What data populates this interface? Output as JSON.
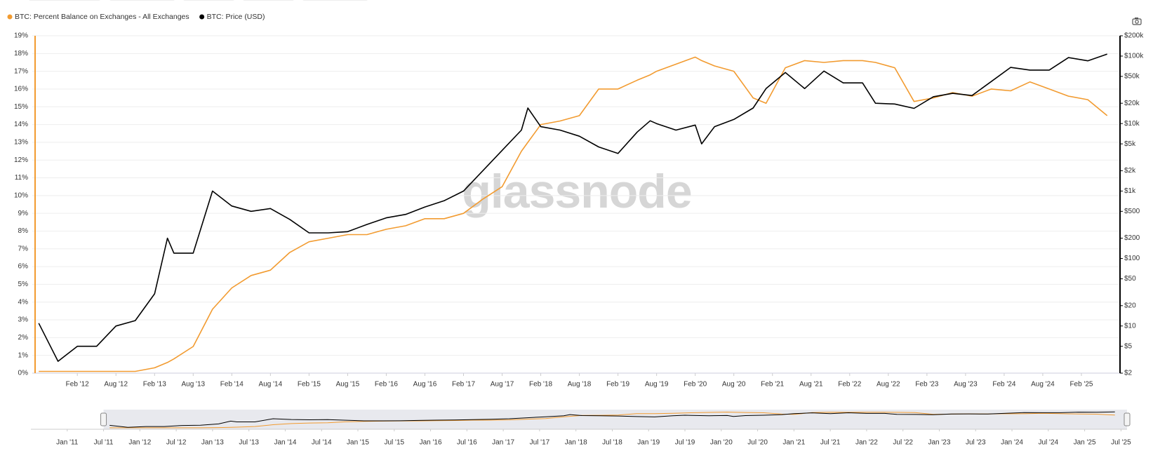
{
  "chart_data": {
    "type": "line",
    "watermark": "glassnode",
    "x": [
      "2011-08",
      "2011-11",
      "2012-02",
      "2012-05",
      "2012-08",
      "2012-11",
      "2013-02",
      "2013-04",
      "2013-05",
      "2013-08",
      "2013-11",
      "2014-02",
      "2014-05",
      "2014-08",
      "2014-11",
      "2015-02",
      "2015-05",
      "2015-08",
      "2015-11",
      "2016-02",
      "2016-05",
      "2016-08",
      "2016-11",
      "2017-02",
      "2017-05",
      "2017-08",
      "2017-11",
      "2017-12",
      "2018-02",
      "2018-05",
      "2018-08",
      "2018-11",
      "2019-02",
      "2019-05",
      "2019-07",
      "2019-08",
      "2019-11",
      "2020-02",
      "2020-03",
      "2020-05",
      "2020-08",
      "2020-11",
      "2021-01",
      "2021-04",
      "2021-07",
      "2021-10",
      "2022-01",
      "2022-04",
      "2022-06",
      "2022-09",
      "2022-12",
      "2023-03",
      "2023-06",
      "2023-09",
      "2023-12",
      "2024-03",
      "2024-06",
      "2024-09",
      "2024-12",
      "2025-03",
      "2025-06"
    ],
    "series": [
      {
        "name": "BTC: Percent Balance on Exchanges - All Exchanges",
        "color": "#f29b30",
        "axis": "y",
        "values": [
          0.1,
          0.1,
          0.1,
          0.1,
          0.1,
          0.1,
          0.3,
          0.6,
          0.8,
          1.5,
          3.6,
          4.8,
          5.5,
          5.8,
          6.8,
          7.4,
          7.6,
          7.8,
          7.8,
          8.1,
          8.3,
          8.7,
          8.7,
          9.0,
          9.8,
          10.5,
          12.5,
          13.0,
          14.0,
          14.2,
          14.5,
          16.0,
          16.0,
          16.5,
          16.8,
          17.0,
          17.4,
          17.8,
          17.6,
          17.3,
          17.0,
          15.5,
          15.2,
          17.2,
          17.6,
          17.5,
          17.6,
          17.6,
          17.5,
          17.2,
          15.3,
          15.5,
          15.8,
          15.6,
          16.0,
          15.9,
          16.4,
          16.0,
          15.6,
          15.4,
          14.5
        ]
      },
      {
        "name": "BTC: Price (USD)",
        "color": "#000000",
        "axis": "y2",
        "values": [
          11,
          3,
          5,
          5,
          10,
          12,
          30,
          200,
          120,
          120,
          1000,
          600,
          500,
          550,
          380,
          240,
          240,
          250,
          320,
          400,
          450,
          580,
          720,
          1000,
          2000,
          4000,
          8000,
          17000,
          9000,
          8000,
          6500,
          4500,
          3600,
          7500,
          11000,
          10000,
          8000,
          9500,
          5000,
          9000,
          11500,
          17000,
          33000,
          57000,
          33000,
          60000,
          40000,
          40000,
          20000,
          19500,
          16800,
          25000,
          28000,
          26000,
          42000,
          68000,
          62000,
          62000,
          95000,
          85000,
          107000
        ]
      }
    ],
    "xlim": [
      "2011-07",
      "2025-08"
    ],
    "xticks": [
      {
        "value": "2012-02",
        "label": "Feb '12"
      },
      {
        "value": "2012-08",
        "label": "Aug '12"
      },
      {
        "value": "2013-02",
        "label": "Feb '13"
      },
      {
        "value": "2013-08",
        "label": "Aug '13"
      },
      {
        "value": "2014-02",
        "label": "Feb '14"
      },
      {
        "value": "2014-08",
        "label": "Aug '14"
      },
      {
        "value": "2015-02",
        "label": "Feb '15"
      },
      {
        "value": "2015-08",
        "label": "Aug '15"
      },
      {
        "value": "2016-02",
        "label": "Feb '16"
      },
      {
        "value": "2016-08",
        "label": "Aug '16"
      },
      {
        "value": "2017-02",
        "label": "Feb '17"
      },
      {
        "value": "2017-08",
        "label": "Aug '17"
      },
      {
        "value": "2018-02",
        "label": "Feb '18"
      },
      {
        "value": "2018-08",
        "label": "Aug '18"
      },
      {
        "value": "2019-02",
        "label": "Feb '19"
      },
      {
        "value": "2019-08",
        "label": "Aug '19"
      },
      {
        "value": "2020-02",
        "label": "Feb '20"
      },
      {
        "value": "2020-08",
        "label": "Aug '20"
      },
      {
        "value": "2021-02",
        "label": "Feb '21"
      },
      {
        "value": "2021-08",
        "label": "Aug '21"
      },
      {
        "value": "2022-02",
        "label": "Feb '22"
      },
      {
        "value": "2022-08",
        "label": "Aug '22"
      },
      {
        "value": "2023-02",
        "label": "Feb '23"
      },
      {
        "value": "2023-08",
        "label": "Aug '23"
      },
      {
        "value": "2024-02",
        "label": "Feb '24"
      },
      {
        "value": "2024-08",
        "label": "Aug '24"
      },
      {
        "value": "2025-02",
        "label": "Feb '25"
      }
    ],
    "ylim": [
      0,
      19
    ],
    "yticks": [
      {
        "value": 0,
        "label": "0%"
      },
      {
        "value": 1,
        "label": "1%"
      },
      {
        "value": 2,
        "label": "2%"
      },
      {
        "value": 3,
        "label": "3%"
      },
      {
        "value": 4,
        "label": "4%"
      },
      {
        "value": 5,
        "label": "5%"
      },
      {
        "value": 6,
        "label": "6%"
      },
      {
        "value": 7,
        "label": "7%"
      },
      {
        "value": 8,
        "label": "8%"
      },
      {
        "value": 9,
        "label": "9%"
      },
      {
        "value": 10,
        "label": "10%"
      },
      {
        "value": 11,
        "label": "11%"
      },
      {
        "value": 12,
        "label": "12%"
      },
      {
        "value": 13,
        "label": "13%"
      },
      {
        "value": 14,
        "label": "14%"
      },
      {
        "value": 15,
        "label": "15%"
      },
      {
        "value": 16,
        "label": "16%"
      },
      {
        "value": 17,
        "label": "17%"
      },
      {
        "value": 18,
        "label": "18%"
      },
      {
        "value": 19,
        "label": "19%"
      }
    ],
    "y2_log": true,
    "y2lim": [
      2,
      200000
    ],
    "y2ticks": [
      {
        "value": 2,
        "label": "$2"
      },
      {
        "value": 5,
        "label": "$5"
      },
      {
        "value": 10,
        "label": "$10"
      },
      {
        "value": 20,
        "label": "$20"
      },
      {
        "value": 50,
        "label": "$50"
      },
      {
        "value": 100,
        "label": "$100"
      },
      {
        "value": 200,
        "label": "$200"
      },
      {
        "value": 500,
        "label": "$500"
      },
      {
        "value": 1000,
        "label": "$1k"
      },
      {
        "value": 2000,
        "label": "$2k"
      },
      {
        "value": 5000,
        "label": "$5k"
      },
      {
        "value": 10000,
        "label": "$10k"
      },
      {
        "value": 20000,
        "label": "$20k"
      },
      {
        "value": 50000,
        "label": "$50k"
      },
      {
        "value": 100000,
        "label": "$100k"
      },
      {
        "value": 200000,
        "label": "$200k"
      }
    ],
    "grid": true,
    "legend": "top-left",
    "navigator": {
      "xlim": [
        "2010-07",
        "2025-08"
      ],
      "xticks": [
        {
          "value": "2011-01",
          "label": "Jan '11"
        },
        {
          "value": "2011-07",
          "label": "Jul '11"
        },
        {
          "value": "2012-01",
          "label": "Jan '12"
        },
        {
          "value": "2012-07",
          "label": "Jul '12"
        },
        {
          "value": "2013-01",
          "label": "Jan '13"
        },
        {
          "value": "2013-07",
          "label": "Jul '13"
        },
        {
          "value": "2014-01",
          "label": "Jan '14"
        },
        {
          "value": "2014-07",
          "label": "Jul '14"
        },
        {
          "value": "2015-01",
          "label": "Jan '15"
        },
        {
          "value": "2015-07",
          "label": "Jul '15"
        },
        {
          "value": "2016-01",
          "label": "Jan '16"
        },
        {
          "value": "2016-07",
          "label": "Jul '16"
        },
        {
          "value": "2017-01",
          "label": "Jan '17"
        },
        {
          "value": "2017-07",
          "label": "Jul '17"
        },
        {
          "value": "2018-01",
          "label": "Jan '18"
        },
        {
          "value": "2018-07",
          "label": "Jul '18"
        },
        {
          "value": "2019-01",
          "label": "Jan '19"
        },
        {
          "value": "2019-07",
          "label": "Jul '19"
        },
        {
          "value": "2020-01",
          "label": "Jan '20"
        },
        {
          "value": "2020-07",
          "label": "Jul '20"
        },
        {
          "value": "2021-01",
          "label": "Jan '21"
        },
        {
          "value": "2021-07",
          "label": "Jul '21"
        },
        {
          "value": "2022-01",
          "label": "Jan '22"
        },
        {
          "value": "2022-07",
          "label": "Jul '22"
        },
        {
          "value": "2023-01",
          "label": "Jan '23"
        },
        {
          "value": "2023-07",
          "label": "Jul '23"
        },
        {
          "value": "2024-01",
          "label": "Jan '24"
        },
        {
          "value": "2024-07",
          "label": "Jul '24"
        },
        {
          "value": "2025-01",
          "label": "Jan '25"
        },
        {
          "value": "2025-07",
          "label": "Jul '25"
        }
      ]
    }
  }
}
